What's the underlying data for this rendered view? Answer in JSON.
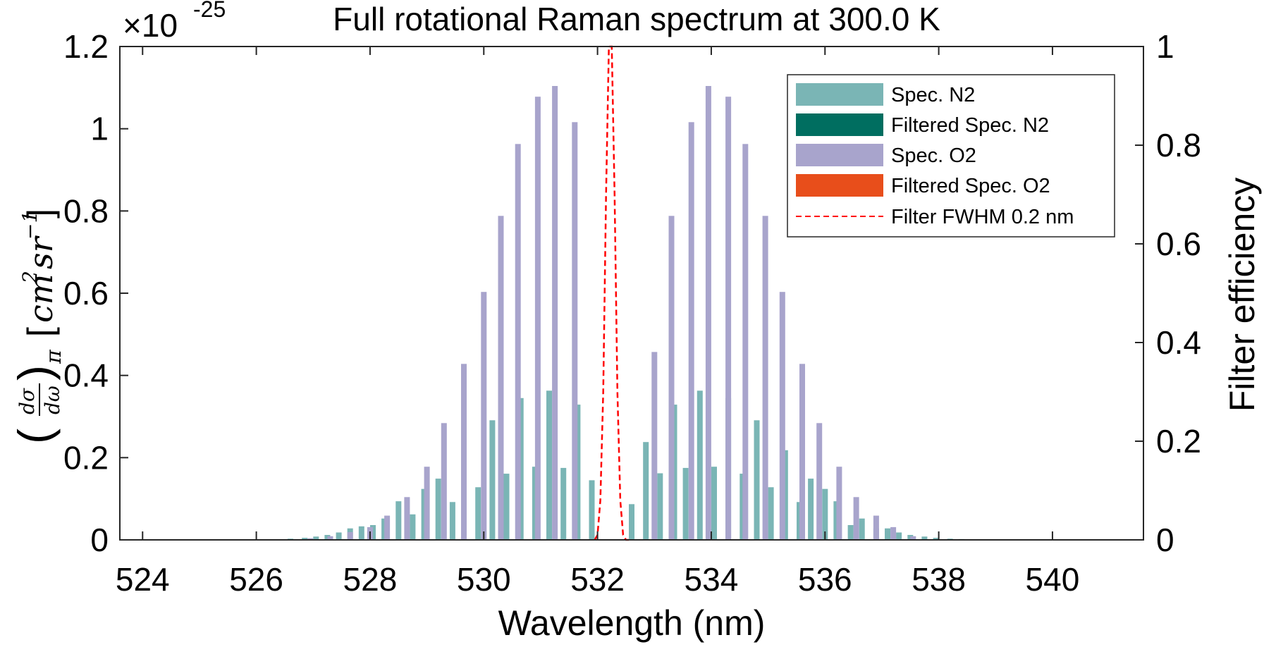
{
  "chart_data": {
    "type": "bar",
    "title": "Full rotational Raman spectrum at 300.0 K",
    "xlabel": "Wavelength (nm)",
    "ylabel_left": {
      "symbol_num": "dσ",
      "symbol_den": "dω",
      "subscript": "π",
      "units_base": "cm",
      "units_exp": "2",
      "units_sr": "sr",
      "units_sr_exp": "−1"
    },
    "ylabel_right": "Filter efficiency",
    "y_multiplier": {
      "base": "×10",
      "exponent": "-25"
    },
    "xlim": [
      523.6,
      541.6
    ],
    "ylim_left": [
      0,
      1.2
    ],
    "ylim_right": [
      0,
      1
    ],
    "xticks": [
      524,
      526,
      528,
      530,
      532,
      534,
      536,
      538,
      540
    ],
    "xtick_labels": [
      "524",
      "526",
      "528",
      "530",
      "532",
      "534",
      "536",
      "538",
      "540"
    ],
    "yticks_left": [
      0,
      0.2,
      0.4,
      0.6,
      0.8,
      1,
      1.2
    ],
    "ytick_labels_left": [
      "0",
      "0.2",
      "0.4",
      "0.6",
      "0.8",
      "1",
      "1.2"
    ],
    "yticks_right": [
      0,
      0.2,
      0.4,
      0.6,
      0.8,
      1
    ],
    "ytick_labels_right": [
      "0",
      "0.2",
      "0.4",
      "0.6",
      "0.8",
      "1"
    ],
    "grid": false,
    "legend_position": "top-right",
    "series": [
      {
        "name": "Spec. N2",
        "color": "#7ab5b5",
        "x": [
          526.6,
          526.85,
          527.05,
          527.25,
          527.45,
          527.65,
          527.85,
          528.05,
          528.25,
          528.5,
          528.75,
          528.95,
          529.2,
          529.45,
          529.65,
          529.9,
          530.15,
          530.4,
          530.65,
          530.9,
          531.15,
          531.4,
          531.65,
          531.9,
          532.6,
          532.85,
          533.1,
          533.35,
          533.55,
          533.8,
          534.05,
          534.3,
          534.55,
          534.8,
          535.05,
          535.3,
          535.55,
          535.75,
          536.0,
          536.2,
          536.45,
          536.65,
          536.9,
          537.1,
          537.3,
          537.5,
          537.75,
          537.95,
          538.2,
          538.4
        ],
        "values": [
          0.003,
          0.005,
          0.008,
          0.012,
          0.018,
          0.028,
          0.033,
          0.036,
          0.052,
          0.094,
          0.062,
          0.124,
          0.149,
          0.092,
          0.218,
          0.128,
          0.291,
          0.161,
          0.345,
          0.178,
          0.363,
          0.175,
          0.329,
          0.145,
          0.087,
          0.238,
          0.162,
          0.329,
          0.175,
          0.363,
          0.178,
          0.345,
          0.161,
          0.291,
          0.128,
          0.218,
          0.092,
          0.149,
          0.124,
          0.094,
          0.036,
          0.052,
          0.028,
          0.028,
          0.018,
          0.012,
          0.008,
          0.005,
          0.003,
          0.002
        ]
      },
      {
        "name": "Filtered Spec. N2",
        "color": "#006e60",
        "x": [],
        "values": []
      },
      {
        "name": "Spec. O2",
        "color": "#a8a4cc",
        "x": [
          526.95,
          527.3,
          527.65,
          528.0,
          528.3,
          528.65,
          529.0,
          529.3,
          529.65,
          530.0,
          530.3,
          530.6,
          530.95,
          531.25,
          531.6,
          533.0,
          533.3,
          533.65,
          533.95,
          534.3,
          534.6,
          534.95,
          535.25,
          535.6,
          535.9,
          536.25,
          536.55,
          536.9,
          537.2,
          537.55
        ],
        "values": [
          0.004,
          0.009,
          0.019,
          0.031,
          0.059,
          0.104,
          0.178,
          0.284,
          0.428,
          0.603,
          0.788,
          0.963,
          1.078,
          1.104,
          1.016,
          0.457,
          0.788,
          1.016,
          1.104,
          1.078,
          0.963,
          0.788,
          0.603,
          0.428,
          0.284,
          0.178,
          0.104,
          0.059,
          0.031,
          0.009
        ]
      },
      {
        "name": "Filtered Spec. O2",
        "color": "#e84e1b",
        "x": [],
        "values": []
      },
      {
        "name": "Filter FWHM  0.2 nm",
        "type": "line",
        "style": "dashed",
        "color": "#ff0000",
        "axis": "right",
        "x": [
          531.95,
          532.0,
          532.05,
          532.1,
          532.15,
          532.2,
          532.25,
          532.3,
          532.35,
          532.4,
          532.45,
          532.5,
          532.55
        ],
        "values": [
          0.0,
          0.01,
          0.08,
          0.3,
          0.7,
          1.0,
          1.0,
          0.7,
          0.3,
          0.08,
          0.01,
          0.0,
          0.0
        ]
      }
    ]
  }
}
